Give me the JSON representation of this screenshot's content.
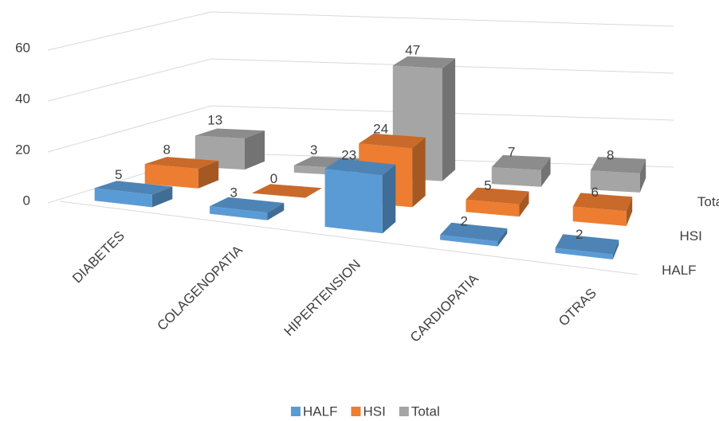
{
  "chart_data": {
    "type": "bar3d",
    "categories": [
      "DIABETES",
      "COLAGENOPATIA",
      "HIPERTENSION",
      "CARDIOPATIA",
      "OTRAS"
    ],
    "series": [
      {
        "name": "HALF",
        "color": "#5b9bd5",
        "values": [
          5,
          3,
          23,
          2,
          2
        ]
      },
      {
        "name": "HSI",
        "color": "#ed7d31",
        "values": [
          8,
          0,
          24,
          5,
          6
        ]
      },
      {
        "name": "Total",
        "color": "#a5a5a5",
        "values": [
          13,
          3,
          47,
          7,
          8
        ]
      }
    ],
    "ylim": [
      0,
      60
    ],
    "yticks": [
      0,
      20,
      40,
      60
    ],
    "grid": true,
    "legend": "bottom"
  }
}
